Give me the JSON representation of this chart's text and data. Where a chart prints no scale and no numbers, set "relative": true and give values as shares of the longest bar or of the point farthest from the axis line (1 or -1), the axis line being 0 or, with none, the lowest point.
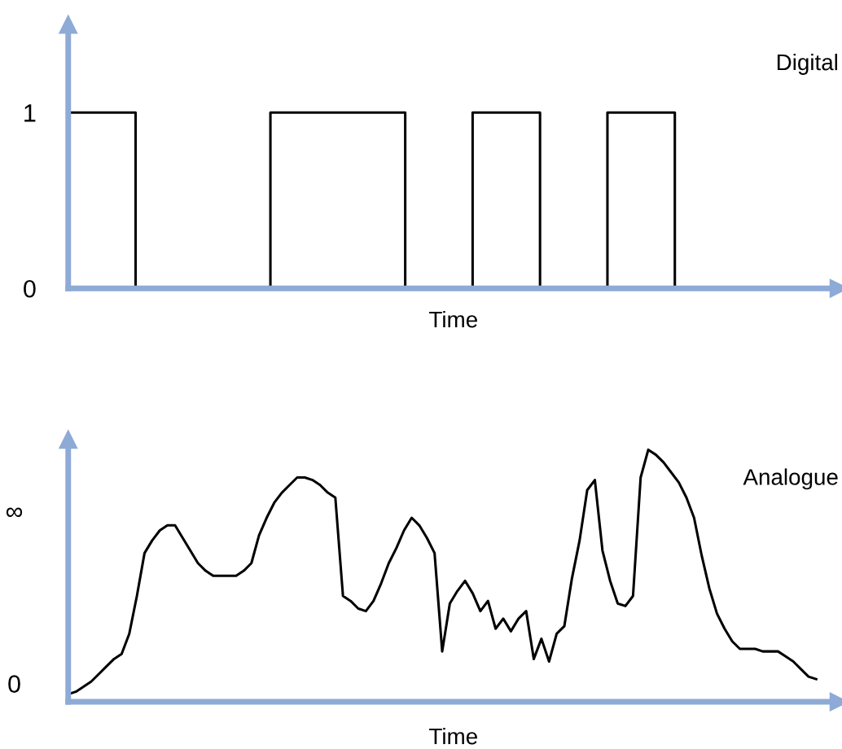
{
  "chart_data": [
    {
      "type": "step",
      "categories": [
        null,
        null,
        null,
        null,
        null,
        null,
        null,
        null,
        null,
        null
      ],
      "values": [
        1,
        0,
        0,
        1,
        1,
        0,
        1,
        0,
        1,
        0
      ],
      "color": "#000000",
      "xlabel": "Time",
      "ylim": [
        0,
        1.5
      ],
      "yticks": [
        0,
        1
      ],
      "tick_labels": "y",
      "annotations": [
        "Digital"
      ],
      "grid": false,
      "legend": false
    },
    {
      "type": "line",
      "categories": [
        null,
        null,
        null,
        null,
        null,
        null,
        null,
        null,
        null,
        null,
        null,
        null,
        null,
        null,
        null,
        null,
        null,
        null,
        null,
        null,
        null,
        null,
        null,
        null,
        null,
        null,
        null,
        null,
        null,
        null,
        null,
        null,
        null,
        null,
        null,
        null,
        null,
        null,
        null,
        null,
        null,
        null,
        null,
        null,
        null,
        null,
        null,
        null,
        null,
        null,
        null,
        null,
        null,
        null,
        null,
        null,
        null,
        null,
        null,
        null,
        null,
        null,
        null,
        null,
        null,
        null,
        null,
        null,
        null,
        null,
        null,
        null,
        null,
        null,
        null,
        null,
        null,
        null,
        null,
        null,
        null,
        null,
        null,
        null,
        null,
        null,
        null,
        null,
        null,
        null,
        null,
        null,
        null,
        null,
        null,
        null,
        null,
        null,
        null
      ],
      "values": [
        0.03,
        0.04,
        0.06,
        0.08,
        0.11,
        0.14,
        0.17,
        0.19,
        0.27,
        0.42,
        0.59,
        0.64,
        0.68,
        0.7,
        0.7,
        0.65,
        0.6,
        0.55,
        0.52,
        0.5,
        0.5,
        0.5,
        0.5,
        0.52,
        0.55,
        0.66,
        0.73,
        0.79,
        0.83,
        0.86,
        0.89,
        0.89,
        0.88,
        0.86,
        0.83,
        0.81,
        0.42,
        0.4,
        0.37,
        0.36,
        0.4,
        0.47,
        0.55,
        0.61,
        0.68,
        0.73,
        0.7,
        0.65,
        0.59,
        0.2,
        0.39,
        0.44,
        0.48,
        0.43,
        0.36,
        0.4,
        0.29,
        0.33,
        0.28,
        0.33,
        0.36,
        0.17,
        0.25,
        0.16,
        0.27,
        0.3,
        0.49,
        0.64,
        0.84,
        0.88,
        0.6,
        0.48,
        0.39,
        0.38,
        0.42,
        0.89,
        1.0,
        0.98,
        0.95,
        0.91,
        0.87,
        0.81,
        0.73,
        0.58,
        0.45,
        0.35,
        0.29,
        0.24,
        0.21,
        0.21,
        0.21,
        0.2,
        0.2,
        0.2,
        0.18,
        0.16,
        0.13,
        0.1,
        0.09
      ],
      "color": "#000000",
      "xlabel": "Time",
      "relative": true,
      "annotations": [
        "Analogue",
        "0",
        "∞"
      ],
      "grid": false,
      "legend": false
    }
  ]
}
